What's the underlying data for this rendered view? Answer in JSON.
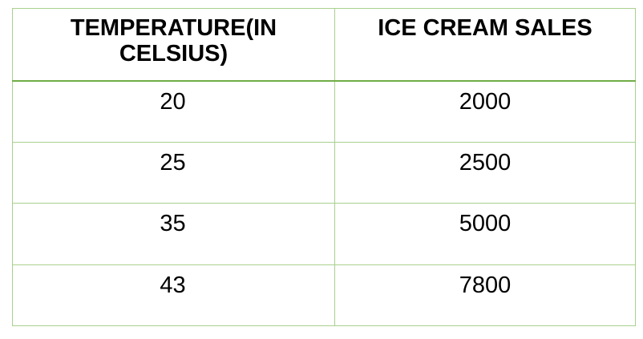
{
  "table": {
    "headers": [
      "TEMPERATURE(IN CELSIUS)",
      "ICE CREAM SALES"
    ],
    "rows": [
      [
        "20",
        "2000"
      ],
      [
        "25",
        "2500"
      ],
      [
        "35",
        "5000"
      ],
      [
        "43",
        "7800"
      ]
    ]
  },
  "colors": {
    "border": "#a9d08e",
    "header_rule": "#70ad47",
    "text": "#000000"
  }
}
